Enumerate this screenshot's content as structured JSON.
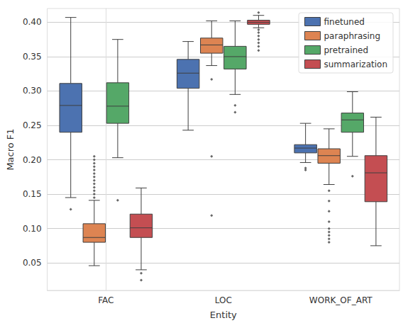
{
  "chart_data": {
    "type": "boxplot",
    "x_label": "Entity",
    "y_label": "Macro F1",
    "categories": [
      "FAC",
      "LOC",
      "WORK_OF_ART"
    ],
    "ylim": [
      0.01,
      0.42
    ],
    "yticks": [
      {
        "value": 0.05,
        "label": "0.05"
      },
      {
        "value": 0.1,
        "label": "0.10"
      },
      {
        "value": 0.15,
        "label": "0.15"
      },
      {
        "value": 0.2,
        "label": "0.20"
      },
      {
        "value": 0.25,
        "label": "0.25"
      },
      {
        "value": 0.3,
        "label": "0.30"
      },
      {
        "value": 0.35,
        "label": "0.35"
      },
      {
        "value": 0.4,
        "label": "0.40"
      }
    ],
    "grid": true,
    "legend": "upper right",
    "series": [
      {
        "name": "finetuned",
        "color": "#4c72b0",
        "values": [
          [
            0.145,
            0.24,
            0.279,
            0.311,
            0.407
          ],
          [
            0.243,
            0.304,
            0.326,
            0.346,
            0.372
          ],
          [
            0.196,
            0.21,
            0.217,
            0.222,
            0.253
          ]
        ],
        "outliers": [
          [
            0.128
          ],
          [],
          [
            0.188,
            0.185
          ]
        ]
      },
      {
        "name": "paraphrasing",
        "color": "#dd8452",
        "values": [
          [
            0.046,
            0.08,
            0.087,
            0.107,
            0.141
          ],
          [
            0.337,
            0.355,
            0.367,
            0.377,
            0.402
          ],
          [
            0.164,
            0.195,
            0.206,
            0.216,
            0.245
          ]
        ],
        "outliers": [
          [
            0.145,
            0.15,
            0.155,
            0.16,
            0.165,
            0.17,
            0.175,
            0.18,
            0.185,
            0.19,
            0.195,
            0.2,
            0.205
          ],
          [
            0.317,
            0.205,
            0.119
          ],
          [
            0.155,
            0.14,
            0.125,
            0.11,
            0.1,
            0.095,
            0.09,
            0.085,
            0.08
          ]
        ]
      },
      {
        "name": "pretrained",
        "color": "#55a868",
        "values": [
          [
            0.203,
            0.253,
            0.278,
            0.312,
            0.375
          ],
          [
            0.295,
            0.332,
            0.35,
            0.365,
            0.402
          ],
          [
            0.205,
            0.24,
            0.258,
            0.268,
            0.299
          ]
        ],
        "outliers": [
          [
            0.141
          ],
          [
            0.279,
            0.269
          ],
          [
            0.176
          ]
        ]
      },
      {
        "name": "summarization",
        "color": "#c44e52",
        "values": [
          [
            0.04,
            0.087,
            0.101,
            0.121,
            0.159
          ],
          [
            0.392,
            0.397,
            0.4,
            0.403,
            0.41
          ],
          [
            0.075,
            0.139,
            0.181,
            0.206,
            0.262
          ]
        ],
        "outliers": [
          [
            0.035,
            0.025
          ],
          [
            0.414,
            0.389,
            0.385,
            0.38,
            0.375,
            0.37,
            0.365,
            0.359
          ],
          []
        ]
      }
    ]
  }
}
